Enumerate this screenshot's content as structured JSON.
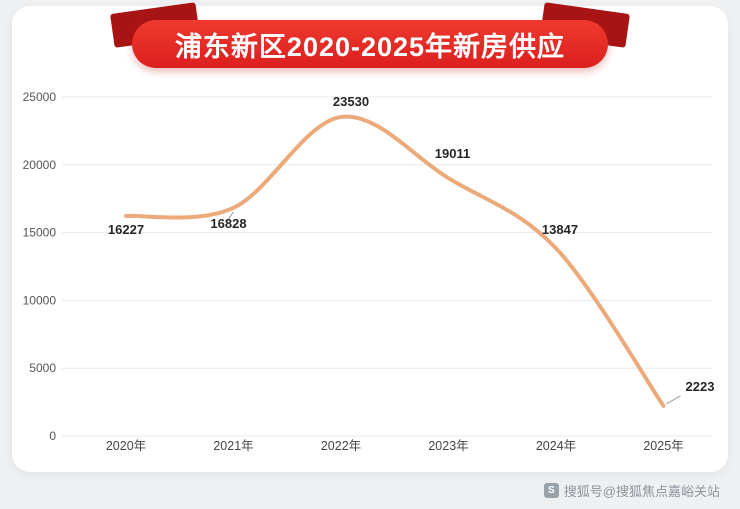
{
  "banner": {
    "title": "浦东新区2020-2025年新房供应"
  },
  "watermark": {
    "icon": "S",
    "text": "搜狐号@搜狐焦点嘉峪关站"
  },
  "colors": {
    "banner_red": "#e02525",
    "ribbon_dark": "#a81414",
    "line": "#ecaa7a",
    "grid": "#eaeaea",
    "leader": "#9a9a9a",
    "value_label": "#262626",
    "axis_text": "#555555",
    "card_bg": "#ffffff",
    "page_bg": "#eef0f2"
  },
  "chart_data": {
    "type": "line",
    "title": "浦东新区2020-2025年新房供应",
    "categories": [
      "2020年",
      "2021年",
      "2022年",
      "2023年",
      "2024年",
      "2025年"
    ],
    "values": [
      16227,
      16828,
      23530,
      19011,
      13847,
      2223
    ],
    "xlabel": "",
    "ylabel": "",
    "ylim": [
      0,
      25000
    ],
    "yticks": [
      0,
      5000,
      10000,
      15000,
      20000,
      25000
    ],
    "grid": true,
    "legend": "none",
    "data_labels": true,
    "line_smooth": true
  }
}
